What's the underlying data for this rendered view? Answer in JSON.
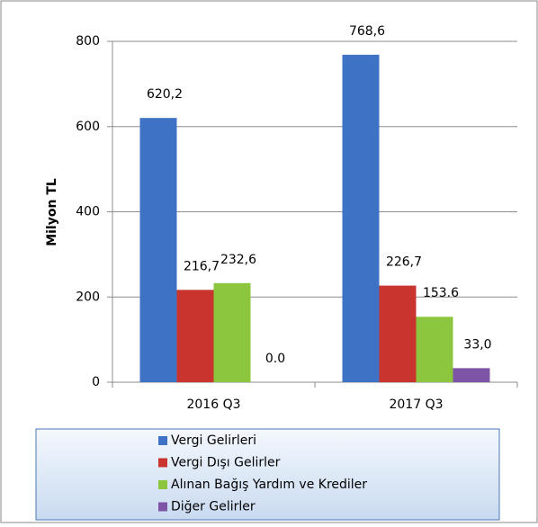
{
  "chart_data": {
    "type": "bar",
    "y_label": "Milyon TL",
    "categories": [
      "2016 Q3",
      "2017 Q3"
    ],
    "series": [
      {
        "name": "Vergi Gelirleri",
        "color": "#3d72c4",
        "values": [
          620.2,
          768.6
        ],
        "value_labels": [
          "620,2",
          "768,6"
        ]
      },
      {
        "name": "Vergi Dışı Gelirler",
        "color": "#c9342e",
        "values": [
          216.7,
          226.7
        ],
        "value_labels": [
          "216,7",
          "226,7"
        ]
      },
      {
        "name": "Alınan Bağış Yardım ve Krediler",
        "color": "#8cc63e",
        "values": [
          232.6,
          153.6
        ],
        "value_labels": [
          "232,6",
          "153.6"
        ]
      },
      {
        "name": "Diğer Gelirler",
        "color": "#7d55a6",
        "values": [
          0.0,
          33.0
        ],
        "value_labels": [
          "0.0",
          "33,0"
        ]
      }
    ],
    "ylim": [
      0,
      800
    ],
    "yticks": [
      0,
      200,
      400,
      600,
      800
    ],
    "grid": true,
    "legend": "bottom"
  }
}
